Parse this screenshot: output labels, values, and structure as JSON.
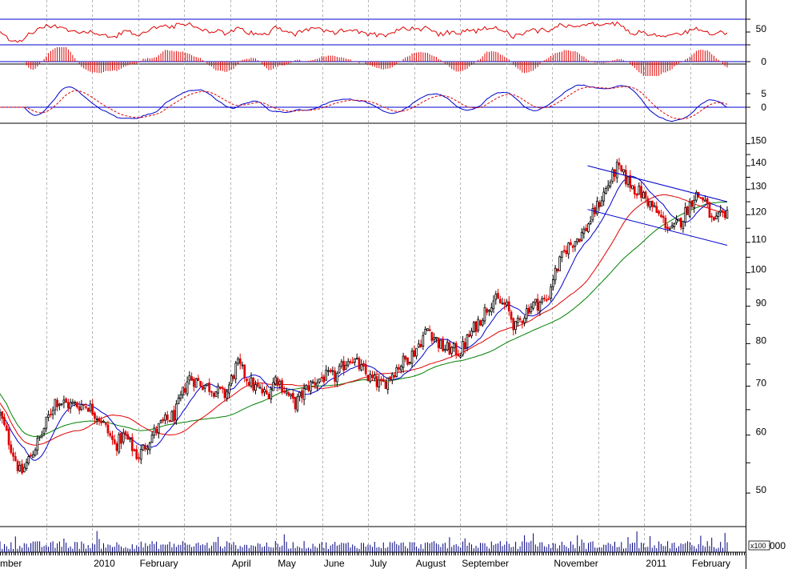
{
  "chart_data": {
    "type": "candlestick",
    "price_scale": "log",
    "grid": "vertical dotted lines at month starts",
    "x_labels": [
      "mber",
      "2010",
      "February",
      "April",
      "May",
      "June",
      "July",
      "August",
      "September",
      "November",
      "2011",
      "February"
    ],
    "month_index": [
      0,
      2,
      3,
      5,
      6,
      7,
      8,
      9,
      10,
      12,
      14,
      15
    ],
    "start_month": "2009-11",
    "price_ticks": [
      150,
      140,
      130,
      120,
      110,
      100,
      90,
      80,
      70,
      60,
      50
    ],
    "price_range": [
      45,
      160
    ],
    "rsi": {
      "ticks": [
        50
      ],
      "levels": [
        70,
        30
      ],
      "range": [
        0,
        100
      ]
    },
    "macd_histogram": {
      "ticks": [
        0
      ]
    },
    "macd": {
      "ticks": [
        5,
        0
      ]
    },
    "volume": {
      "tick_label": "000",
      "multiplier": "x100"
    },
    "channel": {
      "upper": [
        [
          "2010-11-24",
          140
        ],
        [
          "2011-02-25",
          125
        ]
      ],
      "lower": [
        [
          "2010-11-24",
          122
        ],
        [
          "2011-02-25",
          109
        ]
      ]
    },
    "price_anchors": [
      [
        0.0,
        64
      ],
      [
        0.15,
        60
      ],
      [
        0.45,
        53
      ],
      [
        0.9,
        60
      ],
      [
        1.2,
        67
      ],
      [
        1.5,
        66
      ],
      [
        1.9,
        66
      ],
      [
        2.2,
        63
      ],
      [
        2.5,
        58
      ],
      [
        2.7,
        60
      ],
      [
        3.0,
        56
      ],
      [
        3.3,
        60
      ],
      [
        3.5,
        62
      ],
      [
        3.8,
        64
      ],
      [
        4.1,
        72
      ],
      [
        4.5,
        70
      ],
      [
        4.9,
        68
      ],
      [
        5.15,
        75
      ],
      [
        5.5,
        70
      ],
      [
        5.8,
        68
      ],
      [
        6.0,
        72
      ],
      [
        6.4,
        66
      ],
      [
        6.7,
        70
      ],
      [
        7.0,
        72
      ],
      [
        7.3,
        72
      ],
      [
        7.6,
        77
      ],
      [
        8.0,
        72
      ],
      [
        8.3,
        70
      ],
      [
        8.6,
        74
      ],
      [
        9.0,
        78
      ],
      [
        9.3,
        84
      ],
      [
        9.6,
        79
      ],
      [
        10.0,
        78
      ],
      [
        10.3,
        84
      ],
      [
        10.7,
        92
      ],
      [
        11.0,
        90
      ],
      [
        11.2,
        84
      ],
      [
        11.5,
        90
      ],
      [
        11.9,
        92
      ],
      [
        12.0,
        98
      ],
      [
        12.3,
        108
      ],
      [
        12.7,
        114
      ],
      [
        13.0,
        124
      ],
      [
        13.4,
        139
      ],
      [
        13.7,
        132
      ],
      [
        14.0,
        127
      ],
      [
        14.3,
        120
      ],
      [
        14.6,
        114
      ],
      [
        14.8,
        118
      ],
      [
        15.1,
        128
      ],
      [
        15.3,
        126
      ],
      [
        15.5,
        116
      ],
      [
        15.8,
        122
      ]
    ]
  }
}
